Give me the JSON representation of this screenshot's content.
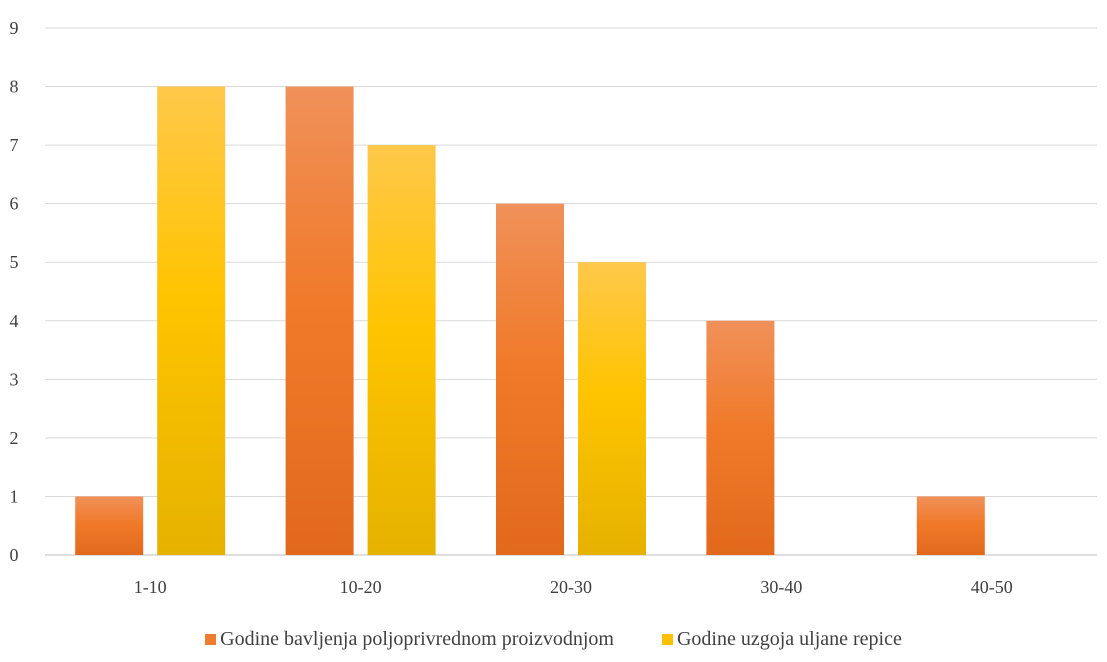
{
  "chart_data": {
    "type": "bar",
    "categories": [
      "1-10",
      "10-20",
      "20-30",
      "30-40",
      "40-50"
    ],
    "series": [
      {
        "name": "Godine bavljenja poljoprivrednom proizvodnjom",
        "values": [
          1,
          8,
          6,
          4,
          1
        ],
        "color": "#ED7D31"
      },
      {
        "name": "Godine uzgoja uljane repice",
        "values": [
          8,
          7,
          5,
          0,
          0
        ],
        "color": "#FFC000"
      }
    ],
    "title": "",
    "xlabel": "",
    "ylabel": "",
    "ylim": [
      0,
      9
    ],
    "yticks": [
      "0",
      "1",
      "2",
      "3",
      "4",
      "5",
      "6",
      "7",
      "8",
      "9"
    ],
    "grid": true,
    "legend_position": "bottom",
    "colors": {
      "gridline": "#D9D9D9",
      "axis": "#BFBFBF",
      "text": "#404040"
    }
  }
}
